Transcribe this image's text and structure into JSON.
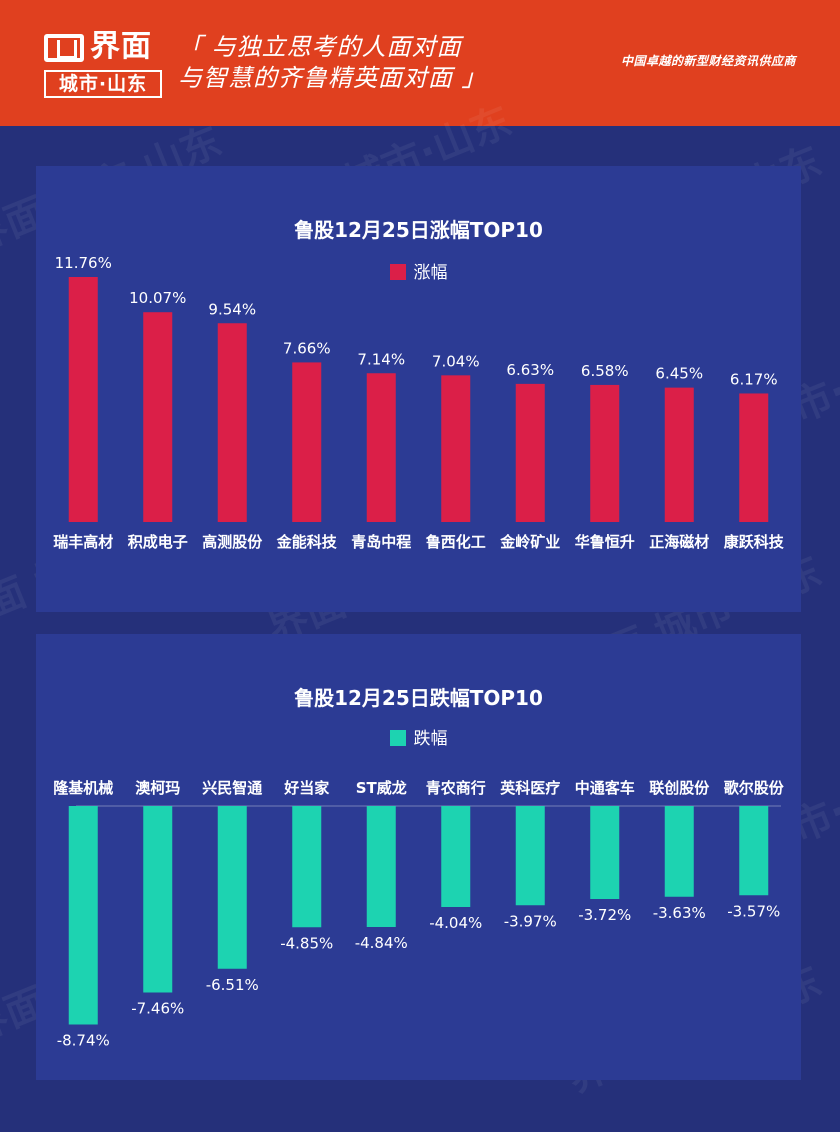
{
  "header": {
    "logo_name": "界面",
    "logo_sub": "城市·山东",
    "slogan_line1": "「 与独立思考的人面对面",
    "slogan_line2": "与智慧的齐鲁精英面对面 」",
    "tagline": "中国卓越的新型财经资讯供应商",
    "background_color": "#e0401f"
  },
  "watermark_text": "界面 城市·山东",
  "chart_data": [
    {
      "type": "bar",
      "title": "鲁股12月25日涨幅TOP10",
      "series": [
        {
          "name": "涨幅",
          "color": "#db1f48",
          "values": [
            11.76,
            10.07,
            9.54,
            7.66,
            7.14,
            7.04,
            6.63,
            6.58,
            6.45,
            6.17
          ],
          "labels": [
            "11.76%",
            "10.07%",
            "9.54%",
            "7.66%",
            "7.14%",
            "7.04%",
            "6.63%",
            "6.58%",
            "6.45%",
            "6.17%"
          ]
        }
      ],
      "categories": [
        "瑞丰高材",
        "积成电子",
        "高测股份",
        "金能科技",
        "青岛中程",
        "鲁西化工",
        "金岭矿业",
        "华鲁恒升",
        "正海磁材",
        "康跃科技"
      ],
      "xlabel": "",
      "ylabel": "",
      "ylim": [
        0,
        12
      ],
      "grid": false,
      "legend": "top-center"
    },
    {
      "type": "bar",
      "title": "鲁股12月25日跌幅TOP10",
      "series": [
        {
          "name": "跌幅",
          "color": "#1dd3b1",
          "values": [
            -8.74,
            -7.46,
            -6.51,
            -4.85,
            -4.84,
            -4.04,
            -3.97,
            -3.72,
            -3.63,
            -3.57
          ],
          "labels": [
            "-8.74%",
            "-7.46%",
            "-6.51%",
            "-4.85%",
            "-4.84%",
            "-4.04%",
            "-3.97%",
            "-3.72%",
            "-3.63%",
            "-3.57%"
          ]
        }
      ],
      "categories": [
        "隆基机械",
        "澳柯玛",
        "兴民智通",
        "好当家",
        "ST威龙",
        "青农商行",
        "英科医疗",
        "中通客车",
        "联创股份",
        "歌尔股份"
      ],
      "xlabel": "",
      "ylabel": "",
      "ylim": [
        -9,
        0
      ],
      "grid": false,
      "legend": "top-center"
    }
  ]
}
